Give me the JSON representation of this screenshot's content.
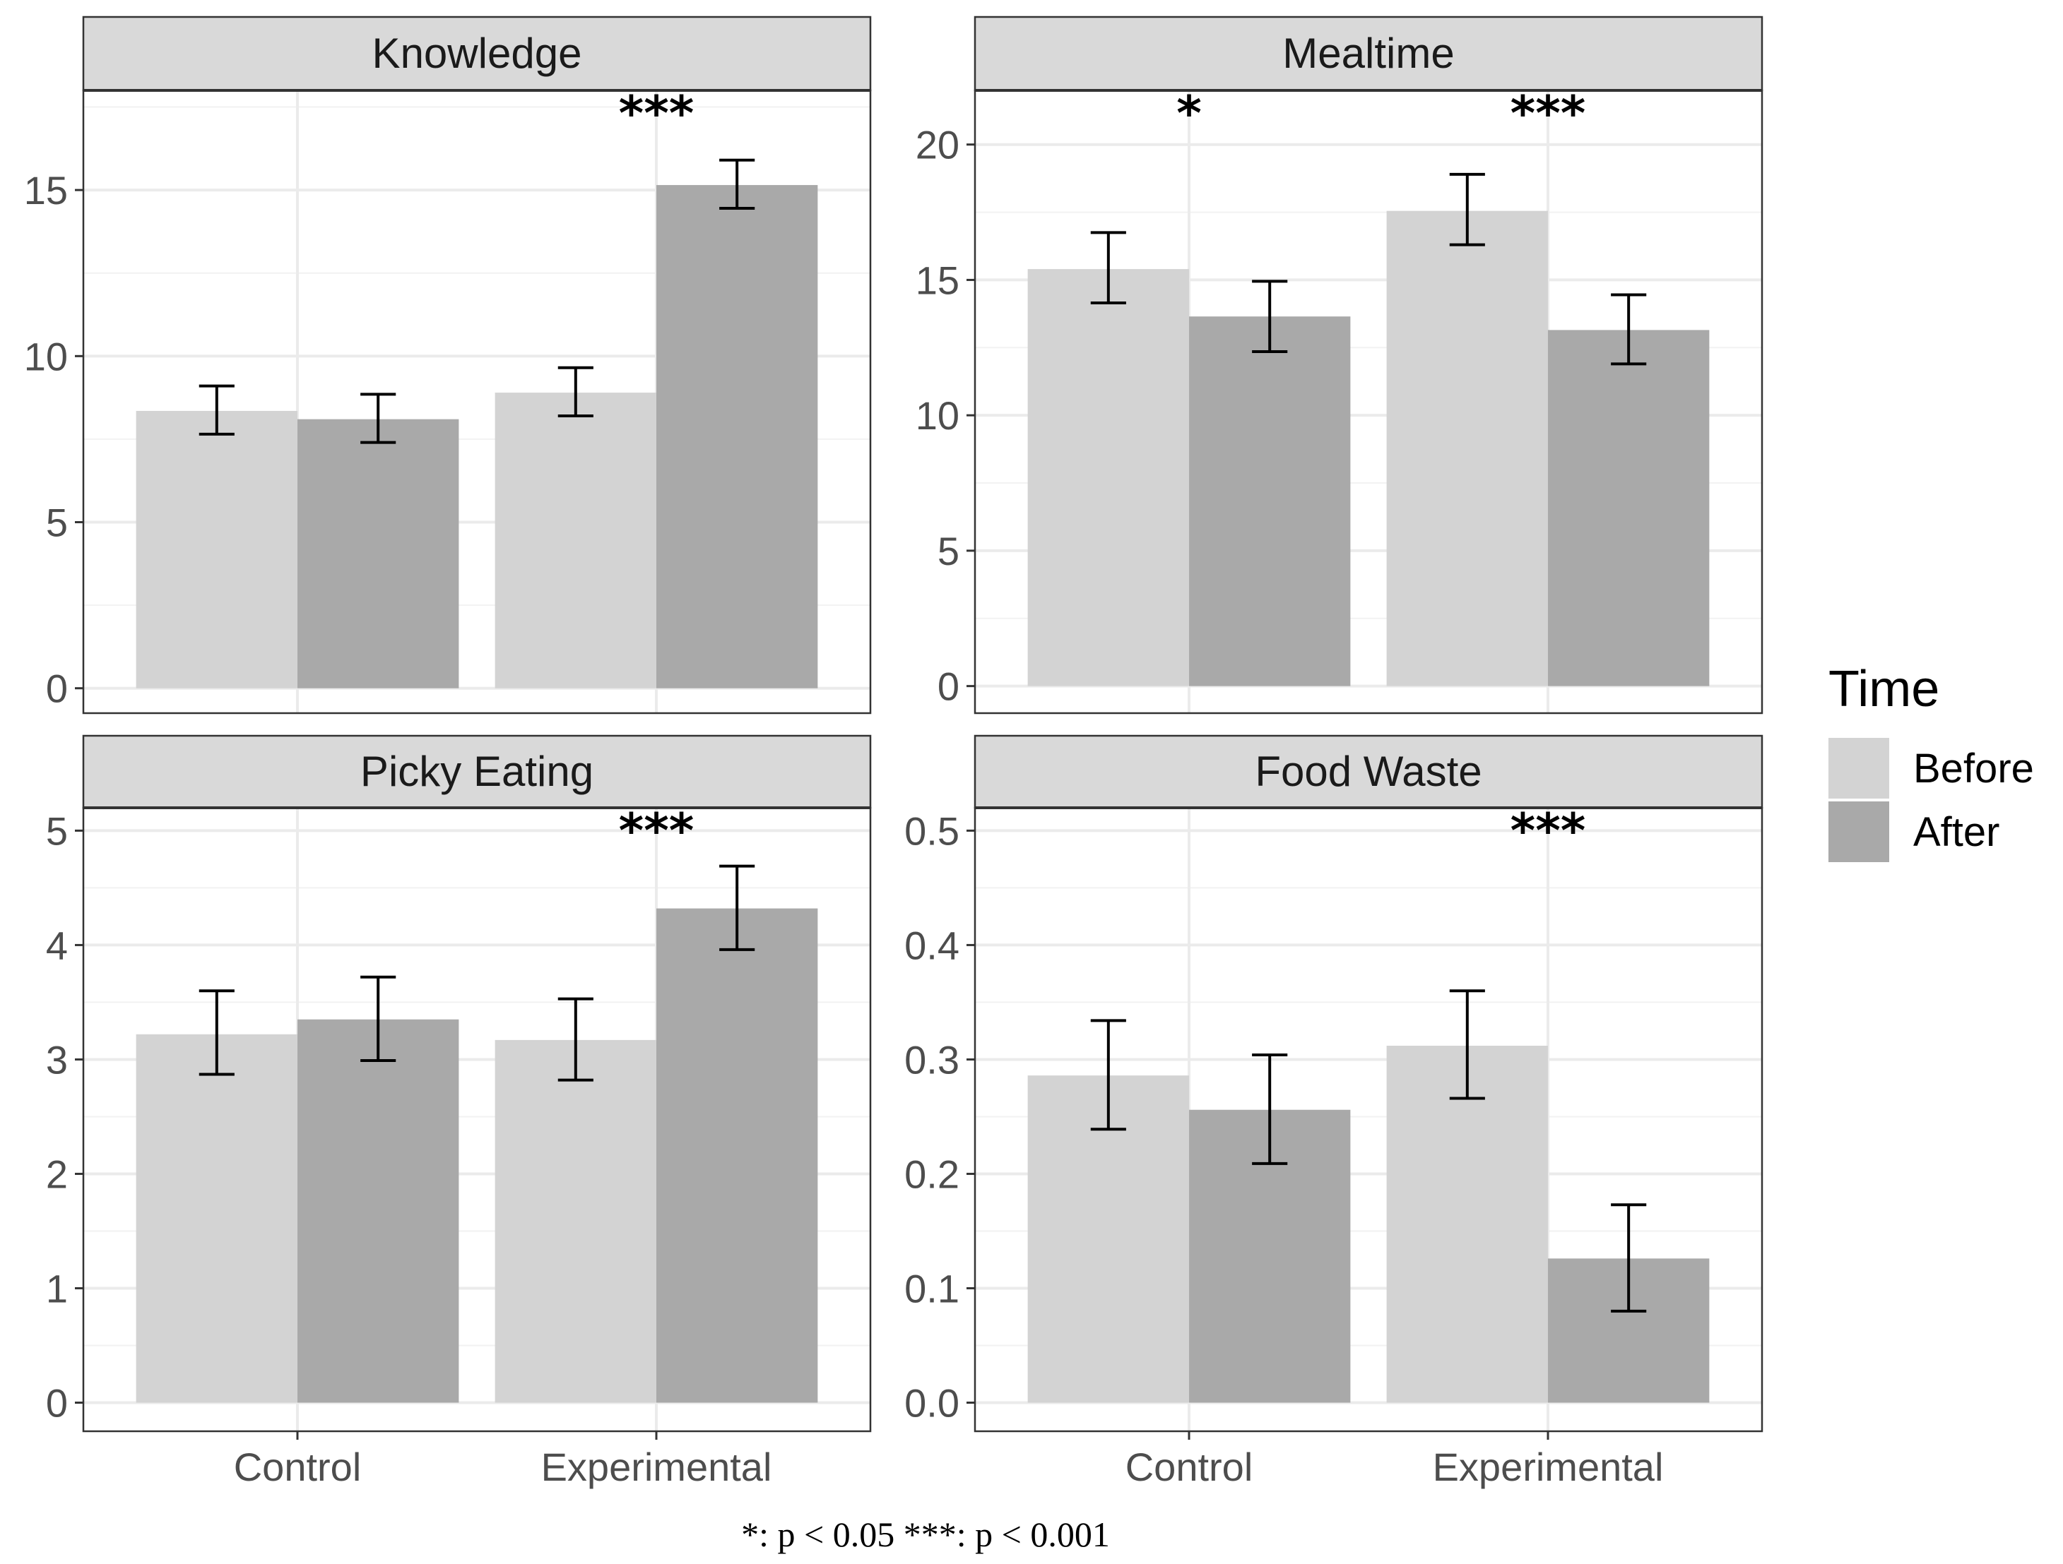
{
  "chart_data": {
    "type": "bar",
    "categories": [
      "Control",
      "Experimental"
    ],
    "legend": {
      "title": "Time",
      "position": "right",
      "entries": [
        {
          "label": "Before",
          "color": "#d3d3d3"
        },
        {
          "label": "After",
          "color": "#a9a9a9"
        }
      ]
    },
    "grid": true,
    "caption": "*: p < 0.05   ***: p < 0.001",
    "panels": [
      {
        "title": "Knowledge",
        "ylim": [
          -0.75,
          18.0
        ],
        "yticks": [
          0,
          5,
          10,
          15
        ],
        "yticklabels": [
          "0",
          "5",
          "10",
          "15"
        ],
        "series": [
          {
            "name": "Before",
            "values": [
              8.35,
              8.9
            ],
            "err_low": [
              7.65,
              8.2
            ],
            "err_high": [
              9.1,
              9.65
            ]
          },
          {
            "name": "After",
            "values": [
              8.1,
              15.15
            ],
            "err_low": [
              7.4,
              14.45
            ],
            "err_high": [
              8.85,
              15.9
            ]
          }
        ],
        "significance": [
          "",
          "***"
        ]
      },
      {
        "title": "Mealtime",
        "ylim": [
          -1.0,
          22.0
        ],
        "yticks": [
          0,
          5,
          10,
          15,
          20
        ],
        "yticklabels": [
          "0",
          "5",
          "10",
          "15",
          "20"
        ],
        "series": [
          {
            "name": "Before",
            "values": [
              15.4,
              17.55
            ],
            "err_low": [
              14.15,
              16.3
            ],
            "err_high": [
              16.75,
              18.9
            ]
          },
          {
            "name": "After",
            "values": [
              13.65,
              13.15
            ],
            "err_low": [
              12.35,
              11.9
            ],
            "err_high": [
              14.95,
              14.45
            ]
          }
        ],
        "significance": [
          "*",
          "***"
        ]
      },
      {
        "title": "Picky Eating",
        "ylim": [
          -0.25,
          5.2
        ],
        "yticks": [
          0,
          1,
          2,
          3,
          4,
          5
        ],
        "yticklabels": [
          "0",
          "1",
          "2",
          "3",
          "4",
          "5"
        ],
        "series": [
          {
            "name": "Before",
            "values": [
              3.22,
              3.17
            ],
            "err_low": [
              2.87,
              2.82
            ],
            "err_high": [
              3.6,
              3.53
            ]
          },
          {
            "name": "After",
            "values": [
              3.35,
              4.32
            ],
            "err_low": [
              2.99,
              3.96
            ],
            "err_high": [
              3.72,
              4.69
            ]
          }
        ],
        "significance": [
          "",
          "***"
        ]
      },
      {
        "title": "Food Waste",
        "ylim": [
          -0.025,
          0.52
        ],
        "yticks": [
          0.0,
          0.1,
          0.2,
          0.3,
          0.4,
          0.5
        ],
        "yticklabels": [
          "0.0",
          "0.1",
          "0.2",
          "0.3",
          "0.4",
          "0.5"
        ],
        "series": [
          {
            "name": "Before",
            "values": [
              0.286,
              0.312
            ],
            "err_low": [
              0.239,
              0.266
            ],
            "err_high": [
              0.334,
              0.36
            ]
          },
          {
            "name": "After",
            "values": [
              0.256,
              0.126
            ],
            "err_low": [
              0.209,
              0.08
            ],
            "err_high": [
              0.304,
              0.173
            ]
          }
        ],
        "significance": [
          "",
          "***"
        ]
      }
    ]
  }
}
